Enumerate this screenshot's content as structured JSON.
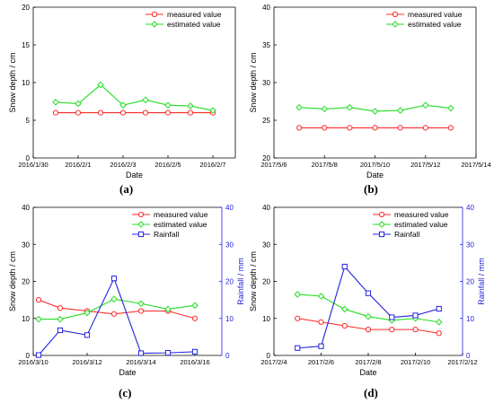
{
  "panel_labels": [
    "(a)",
    "(b)",
    "(c)",
    "(d)"
  ],
  "colors": {
    "measured": "#ff2a2a",
    "estimated": "#22dd22",
    "rainfall": "#2222dd",
    "axis": "#000000"
  },
  "chart_data": [
    {
      "type": "line",
      "xlabel": "Date",
      "ylabel": "Snow depth / cm",
      "ylim": [
        0,
        20
      ],
      "yticks": [
        0,
        5,
        10,
        15,
        20
      ],
      "xlim": [
        "2016/1/30",
        "2016/2/8"
      ],
      "xticks": [
        "2016/1/30",
        "2016/2/1",
        "2016/2/3",
        "2016/2/5",
        "2016/2/7"
      ],
      "legend": "top-right",
      "series": [
        {
          "name": "measured value",
          "color": "measured",
          "marker": "circle",
          "x": [
            "2016/1/31",
            "2016/2/1",
            "2016/2/2",
            "2016/2/3",
            "2016/2/4",
            "2016/2/5",
            "2016/2/6",
            "2016/2/7"
          ],
          "values": [
            6,
            6,
            6,
            6,
            6,
            6,
            6,
            6
          ]
        },
        {
          "name": "estimated value",
          "color": "estimated",
          "marker": "diamond",
          "x": [
            "2016/1/31",
            "2016/2/1",
            "2016/2/2",
            "2016/2/3",
            "2016/2/4",
            "2016/2/5",
            "2016/2/6",
            "2016/2/7"
          ],
          "values": [
            7.4,
            7.2,
            9.7,
            7.0,
            7.7,
            7.0,
            6.9,
            6.3
          ]
        }
      ]
    },
    {
      "type": "line",
      "xlabel": "Date",
      "ylabel": "Snow depth / cm",
      "ylim": [
        20,
        40
      ],
      "yticks": [
        20,
        25,
        30,
        35,
        40
      ],
      "xlim": [
        "2017/5/6",
        "2017/5/14"
      ],
      "xticks": [
        "2017/5/6",
        "2017/5/8",
        "2017/5/10",
        "2017/5/12",
        "2017/5/14"
      ],
      "legend": "top-right",
      "series": [
        {
          "name": "measured value",
          "color": "measured",
          "marker": "circle",
          "x": [
            "2017/5/7",
            "2017/5/8",
            "2017/5/9",
            "2017/5/10",
            "2017/5/11",
            "2017/5/12",
            "2017/5/13"
          ],
          "values": [
            24,
            24,
            24,
            24,
            24,
            24,
            24
          ]
        },
        {
          "name": "estimated value",
          "color": "estimated",
          "marker": "diamond",
          "x": [
            "2017/5/7",
            "2017/5/8",
            "2017/5/9",
            "2017/5/10",
            "2017/5/11",
            "2017/5/12",
            "2017/5/13"
          ],
          "values": [
            26.7,
            26.5,
            26.7,
            26.2,
            26.3,
            27.0,
            26.6
          ]
        }
      ]
    },
    {
      "type": "line",
      "xlabel": "Date",
      "ylabel": "Snow depth / cm",
      "ylabel2": "Rainfall / mm",
      "ylim": [
        0,
        40
      ],
      "yticks": [
        0,
        10,
        20,
        30,
        40
      ],
      "y2lim": [
        0,
        40
      ],
      "y2ticks": [
        0,
        10,
        20,
        30,
        40
      ],
      "xlim": [
        "2016/3/10",
        "2016/3/17"
      ],
      "xticks": [
        "2016/3/10",
        "2016/3/12",
        "2016/3/14",
        "2016/3/16"
      ],
      "legend": "top-right",
      "series": [
        {
          "name": "measured value",
          "color": "measured",
          "marker": "circle",
          "axis": "left",
          "x": [
            "2016/3/10.2",
            "2016/3/11",
            "2016/3/12",
            "2016/3/13",
            "2016/3/14",
            "2016/3/15",
            "2016/3/16"
          ],
          "values": [
            15,
            12.8,
            12.0,
            11.2,
            12.0,
            12.0,
            10.0
          ]
        },
        {
          "name": "estimated value",
          "color": "estimated",
          "marker": "diamond",
          "axis": "left",
          "x": [
            "2016/3/10.2",
            "2016/3/11",
            "2016/3/12",
            "2016/3/13",
            "2016/3/14",
            "2016/3/15",
            "2016/3/16"
          ],
          "values": [
            9.8,
            9.8,
            11.5,
            15.2,
            14.0,
            12.5,
            13.5
          ]
        },
        {
          "name": "Rainfall",
          "color": "rainfall",
          "marker": "square",
          "axis": "right",
          "x": [
            "2016/3/10.2",
            "2016/3/11",
            "2016/3/12",
            "2016/3/13",
            "2016/3/14",
            "2016/3/15",
            "2016/3/16"
          ],
          "values": [
            0.1,
            6.8,
            5.5,
            20.8,
            0.6,
            0.7,
            1.0
          ]
        }
      ]
    },
    {
      "type": "line",
      "xlabel": "Date",
      "ylabel": "Snow depth / cm",
      "ylabel2": "Rainfall / mm",
      "ylim": [
        0,
        40
      ],
      "yticks": [
        0,
        10,
        20,
        30,
        40
      ],
      "y2lim": [
        0,
        40
      ],
      "y2ticks": [
        0,
        10,
        20,
        30,
        40
      ],
      "xlim": [
        "2017/2/4",
        "2017/2/12"
      ],
      "xticks": [
        "2017/2/4",
        "2017/2/6",
        "2017/2/8",
        "2017/2/10",
        "2017/2/12"
      ],
      "legend": "top-right",
      "series": [
        {
          "name": "measured value",
          "color": "measured",
          "marker": "circle",
          "axis": "left",
          "x": [
            "2017/2/5",
            "2017/2/6",
            "2017/2/7",
            "2017/2/8",
            "2017/2/9",
            "2017/2/10",
            "2017/2/11"
          ],
          "values": [
            10,
            9,
            8,
            7,
            7,
            7,
            6
          ]
        },
        {
          "name": "estimated value",
          "color": "estimated",
          "marker": "diamond",
          "axis": "left",
          "x": [
            "2017/2/5",
            "2017/2/6",
            "2017/2/7",
            "2017/2/8",
            "2017/2/9",
            "2017/2/10",
            "2017/2/11"
          ],
          "values": [
            16.5,
            16.0,
            12.5,
            10.5,
            9.5,
            10.0,
            9.0
          ]
        },
        {
          "name": "Rainfall",
          "color": "rainfall",
          "marker": "square",
          "axis": "right",
          "x": [
            "2017/2/5",
            "2017/2/6",
            "2017/2/7",
            "2017/2/8",
            "2017/2/9",
            "2017/2/10",
            "2017/2/11"
          ],
          "values": [
            2.0,
            2.5,
            24.0,
            16.8,
            10.3,
            10.8,
            12.6
          ]
        }
      ]
    }
  ]
}
